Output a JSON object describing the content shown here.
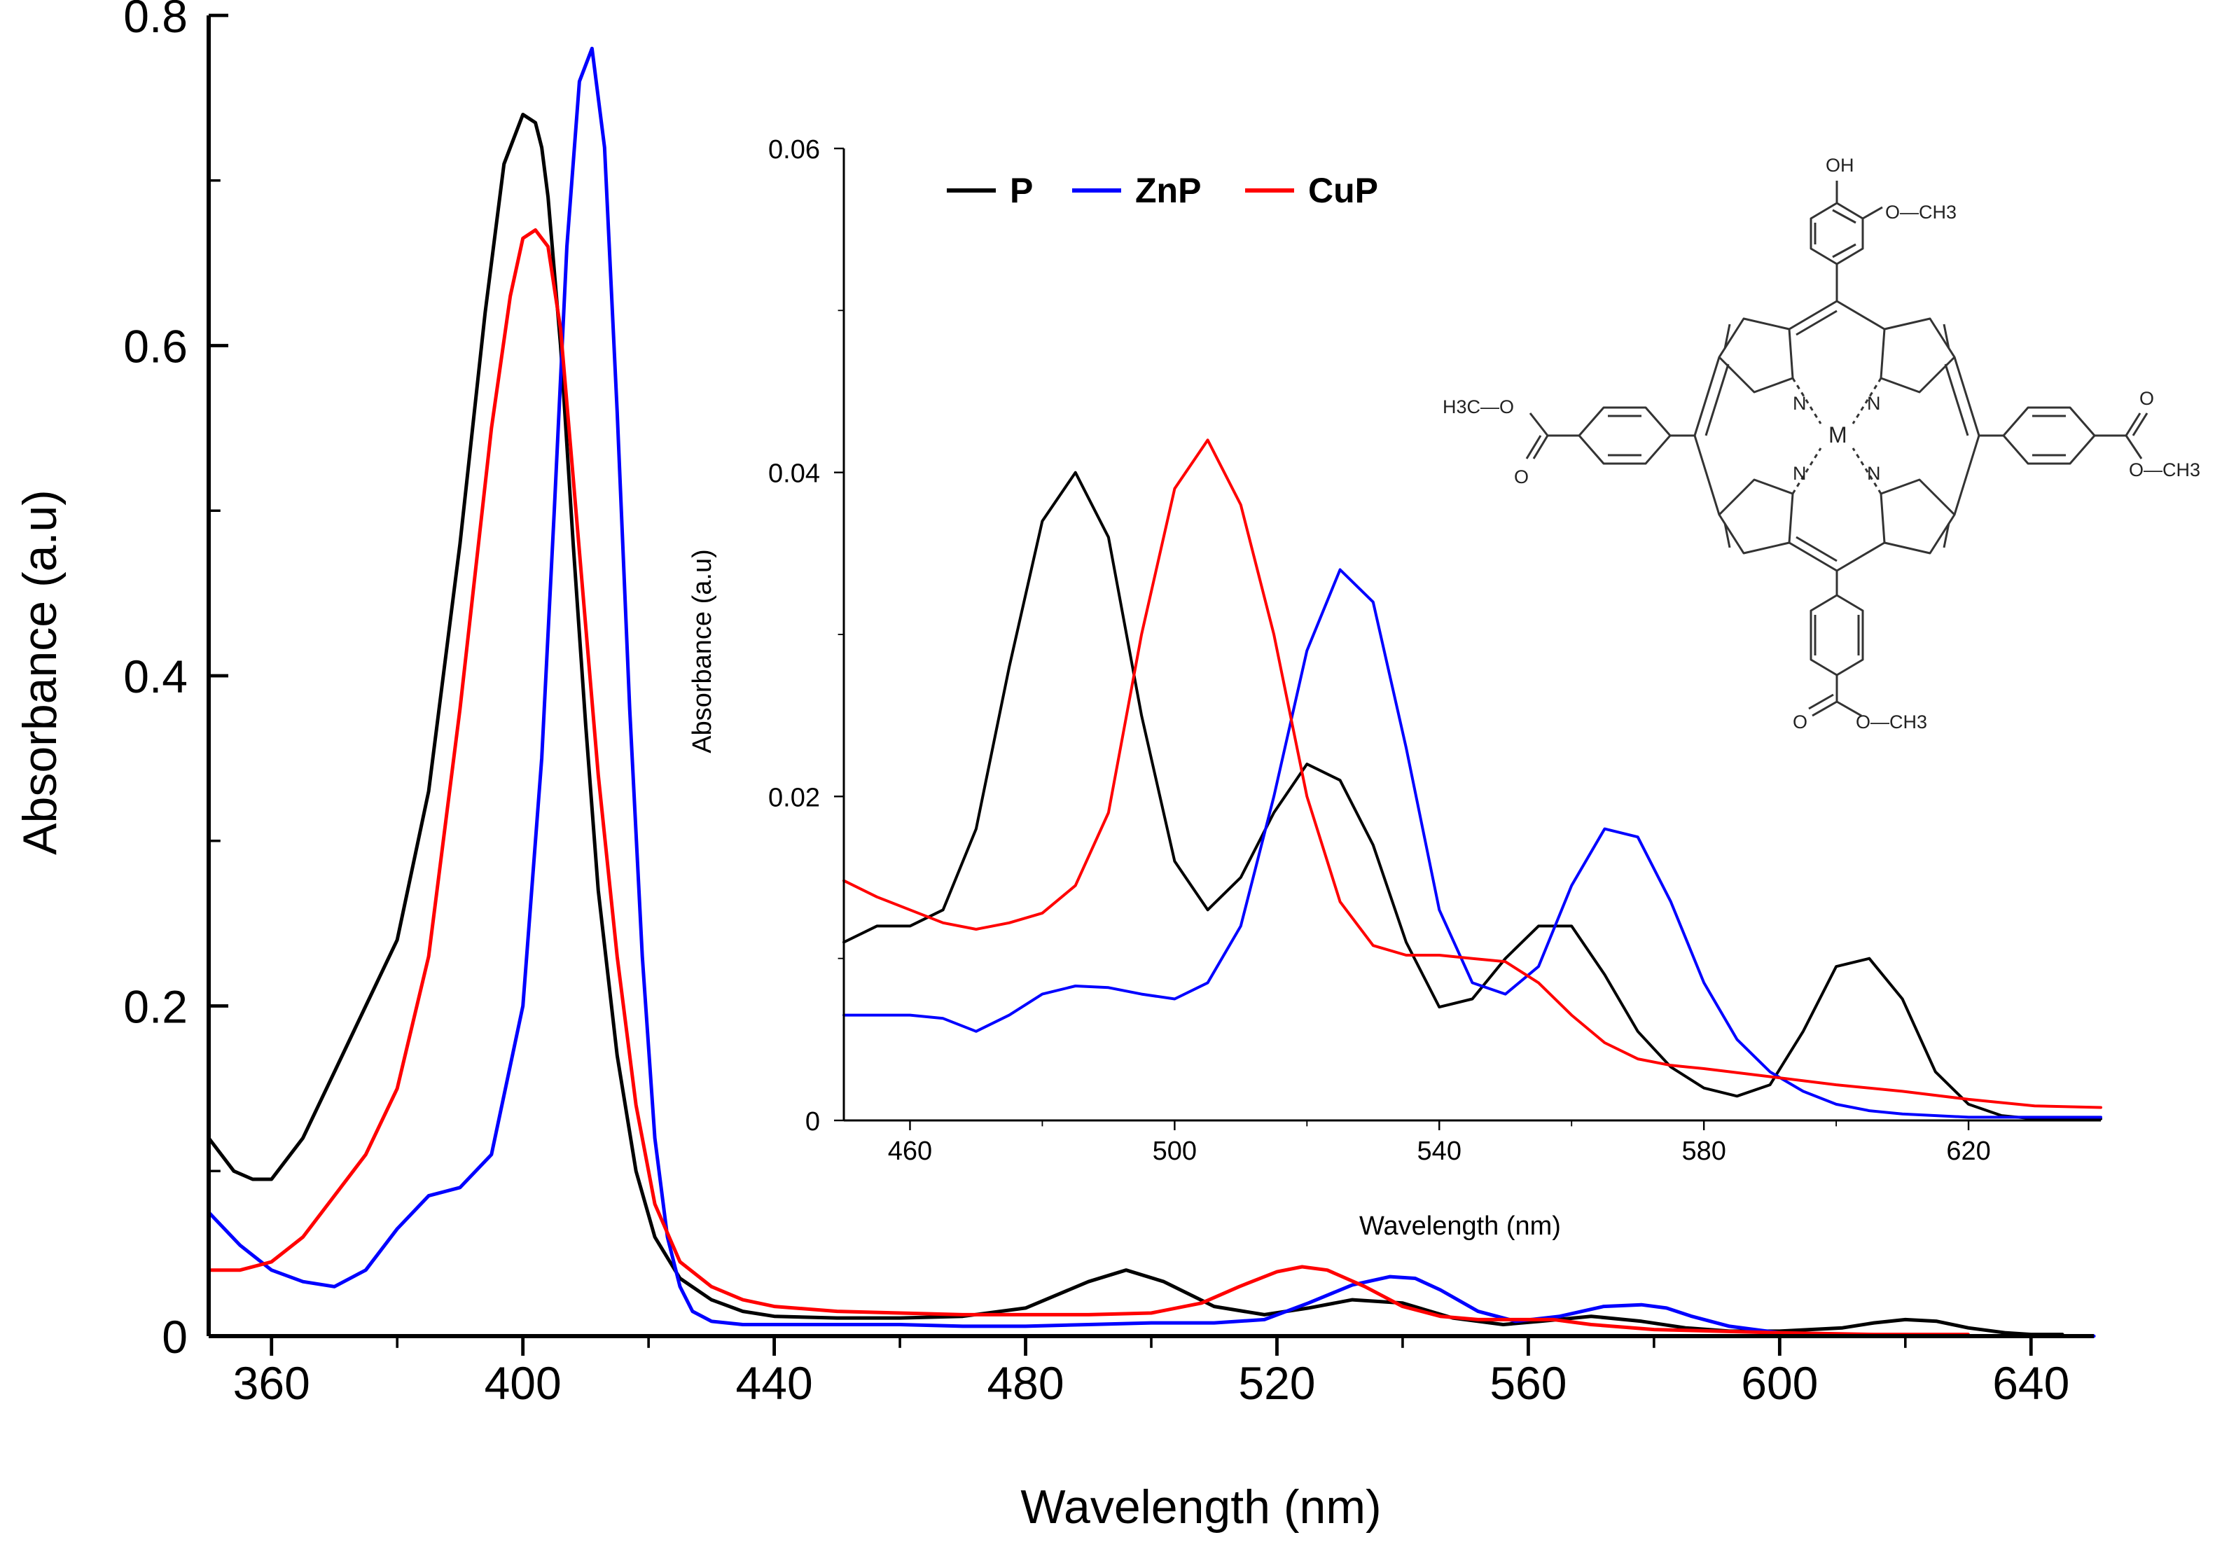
{
  "chart_data": [
    {
      "id": "main",
      "type": "line",
      "title": "",
      "xlabel": "Wavelength (nm)",
      "ylabel": "Absorbance (a.u)",
      "xlim": [
        350,
        650
      ],
      "ylim": [
        0,
        0.8
      ],
      "xticks": [
        360,
        400,
        440,
        480,
        520,
        560,
        600,
        640
      ],
      "xtick_labels": [
        "360",
        "400",
        "440",
        "480",
        "520",
        "560",
        "600",
        "640"
      ],
      "yticks": [
        0,
        0.2,
        0.4,
        0.6,
        0.8
      ],
      "ytick_labels": [
        "0",
        "0.2",
        "0.4",
        "0.6",
        "0.8"
      ],
      "grid": false,
      "series": [
        {
          "name": "P",
          "color": "#000000",
          "x": [
            350,
            354,
            357,
            360,
            365,
            370,
            375,
            380,
            385,
            390,
            394,
            397,
            400,
            402,
            403,
            404,
            406,
            408,
            410,
            412,
            415,
            418,
            421,
            425,
            430,
            435,
            440,
            450,
            460,
            470,
            480,
            490,
            496,
            502,
            510,
            518,
            525,
            532,
            540,
            548,
            556,
            562,
            570,
            578,
            585,
            592,
            600,
            610,
            615,
            620,
            625,
            630,
            636,
            640,
            645
          ],
          "y": [
            0.12,
            0.1,
            0.095,
            0.095,
            0.12,
            0.16,
            0.2,
            0.24,
            0.33,
            0.48,
            0.62,
            0.71,
            0.74,
            0.735,
            0.72,
            0.69,
            0.6,
            0.48,
            0.37,
            0.27,
            0.17,
            0.1,
            0.06,
            0.035,
            0.022,
            0.015,
            0.012,
            0.011,
            0.011,
            0.012,
            0.017,
            0.033,
            0.04,
            0.033,
            0.018,
            0.013,
            0.017,
            0.022,
            0.02,
            0.011,
            0.007,
            0.009,
            0.012,
            0.009,
            0.005,
            0.003,
            0.003,
            0.005,
            0.008,
            0.01,
            0.009,
            0.005,
            0.002,
            0.001,
            0.001
          ]
        },
        {
          "name": "ZnP",
          "color": "#0000ff",
          "x": [
            350,
            355,
            360,
            365,
            370,
            375,
            380,
            385,
            390,
            395,
            400,
            403,
            405,
            407,
            409,
            411,
            413,
            415,
            417,
            419,
            421,
            423,
            425,
            427,
            430,
            435,
            440,
            450,
            460,
            470,
            480,
            490,
            500,
            510,
            518,
            525,
            532,
            538,
            542,
            546,
            552,
            558,
            565,
            572,
            578,
            582,
            586,
            592,
            600,
            610,
            625,
            640,
            650
          ],
          "y": [
            0.075,
            0.055,
            0.04,
            0.033,
            0.03,
            0.04,
            0.065,
            0.085,
            0.09,
            0.11,
            0.2,
            0.35,
            0.5,
            0.66,
            0.76,
            0.78,
            0.72,
            0.56,
            0.38,
            0.23,
            0.12,
            0.06,
            0.03,
            0.015,
            0.009,
            0.007,
            0.007,
            0.007,
            0.007,
            0.006,
            0.006,
            0.007,
            0.008,
            0.008,
            0.01,
            0.02,
            0.031,
            0.036,
            0.035,
            0.028,
            0.015,
            0.009,
            0.012,
            0.018,
            0.019,
            0.017,
            0.012,
            0.006,
            0.002,
            0.001,
            0.0,
            0.0,
            0.0
          ]
        },
        {
          "name": "CuP",
          "color": "#ff0000",
          "x": [
            350,
            355,
            360,
            365,
            370,
            375,
            380,
            385,
            390,
            395,
            398,
            400,
            402,
            404,
            406,
            408,
            410,
            412,
            415,
            418,
            421,
            425,
            430,
            435,
            440,
            450,
            460,
            470,
            480,
            490,
            500,
            508,
            514,
            520,
            524,
            528,
            534,
            540,
            546,
            552,
            558,
            564,
            570,
            580,
            590,
            600,
            615,
            630
          ],
          "y": [
            0.04,
            0.04,
            0.045,
            0.06,
            0.085,
            0.11,
            0.15,
            0.23,
            0.38,
            0.55,
            0.63,
            0.665,
            0.67,
            0.66,
            0.61,
            0.52,
            0.43,
            0.34,
            0.23,
            0.14,
            0.08,
            0.045,
            0.03,
            0.022,
            0.018,
            0.015,
            0.014,
            0.013,
            0.013,
            0.013,
            0.014,
            0.02,
            0.03,
            0.039,
            0.042,
            0.04,
            0.03,
            0.018,
            0.012,
            0.01,
            0.01,
            0.01,
            0.007,
            0.004,
            0.003,
            0.002,
            0.001,
            0.001
          ]
        }
      ]
    },
    {
      "id": "inset",
      "type": "line",
      "title": "",
      "xlabel": "Wavelength (nm)",
      "ylabel": "Absorbance (a.u)",
      "xlim": [
        450,
        640
      ],
      "ylim": [
        0,
        0.06
      ],
      "xticks": [
        460,
        500,
        540,
        580,
        620
      ],
      "xtick_labels": [
        "460",
        "500",
        "540",
        "580",
        "620"
      ],
      "yticks": [
        0,
        0.02,
        0.04,
        0.06
      ],
      "ytick_labels": [
        "0",
        "0.02",
        "0.04",
        "0.06"
      ],
      "grid": false,
      "legend": {
        "placement": "top-left",
        "entries": [
          {
            "label": "P",
            "color": "#000000"
          },
          {
            "label": "ZnP",
            "color": "#0000ff"
          },
          {
            "label": "CuP",
            "color": "#ff0000"
          }
        ]
      },
      "series": [
        {
          "name": "P",
          "color": "#000000",
          "x": [
            450,
            455,
            460,
            465,
            470,
            475,
            480,
            485,
            490,
            495,
            500,
            505,
            510,
            515,
            520,
            525,
            530,
            535,
            540,
            545,
            550,
            555,
            560,
            565,
            570,
            575,
            580,
            585,
            590,
            595,
            600,
            605,
            610,
            615,
            620,
            625,
            630,
            635,
            640
          ],
          "y": [
            0.011,
            0.012,
            0.012,
            0.013,
            0.018,
            0.028,
            0.037,
            0.04,
            0.036,
            0.025,
            0.016,
            0.013,
            0.015,
            0.019,
            0.022,
            0.021,
            0.017,
            0.011,
            0.007,
            0.0075,
            0.01,
            0.012,
            0.012,
            0.009,
            0.0055,
            0.0033,
            0.002,
            0.0015,
            0.0022,
            0.0055,
            0.0095,
            0.01,
            0.0075,
            0.003,
            0.001,
            0.0003,
            0.0001,
            0.0001,
            0.0001
          ]
        },
        {
          "name": "ZnP",
          "color": "#0000ff",
          "x": [
            450,
            460,
            465,
            470,
            475,
            480,
            485,
            490,
            495,
            500,
            505,
            510,
            515,
            520,
            525,
            530,
            535,
            540,
            545,
            550,
            555,
            560,
            565,
            570,
            575,
            580,
            585,
            590,
            595,
            600,
            605,
            610,
            620,
            630,
            640
          ],
          "y": [
            0.0065,
            0.0065,
            0.0063,
            0.0055,
            0.0065,
            0.0078,
            0.0083,
            0.0082,
            0.0078,
            0.0075,
            0.0085,
            0.012,
            0.02,
            0.029,
            0.034,
            0.032,
            0.023,
            0.013,
            0.0085,
            0.0078,
            0.0095,
            0.0145,
            0.018,
            0.0175,
            0.0135,
            0.0085,
            0.005,
            0.003,
            0.0018,
            0.001,
            0.0006,
            0.0004,
            0.0002,
            0.0002,
            0.0002
          ]
        },
        {
          "name": "CuP",
          "color": "#ff0000",
          "x": [
            450,
            455,
            460,
            465,
            470,
            475,
            480,
            485,
            490,
            495,
            500,
            505,
            510,
            515,
            520,
            525,
            530,
            535,
            540,
            545,
            550,
            555,
            560,
            565,
            570,
            575,
            580,
            590,
            600,
            610,
            620,
            630,
            640
          ],
          "y": [
            0.0148,
            0.0138,
            0.013,
            0.0122,
            0.0118,
            0.0122,
            0.0128,
            0.0145,
            0.019,
            0.03,
            0.039,
            0.042,
            0.038,
            0.03,
            0.02,
            0.0135,
            0.0108,
            0.0102,
            0.0102,
            0.01,
            0.0098,
            0.0085,
            0.0065,
            0.0048,
            0.0038,
            0.0034,
            0.0032,
            0.0027,
            0.0022,
            0.0018,
            0.0013,
            0.0009,
            0.0008
          ]
        }
      ]
    }
  ],
  "structure": {
    "labels": {
      "hydroxyl": "OH",
      "methoxy": "O—CH3",
      "left_ester_methyl": "H3C—O",
      "left_carbonyl": "O",
      "right_carbonyl": "O",
      "right_ester": "O—CH3",
      "bottom_carbonyl": "O",
      "bottom_ester": "O—CH3",
      "metal": "M",
      "nitrogen_1": "N",
      "nitrogen_2": "N",
      "nitrogen_3": "N",
      "nitrogen_4": "N"
    }
  }
}
